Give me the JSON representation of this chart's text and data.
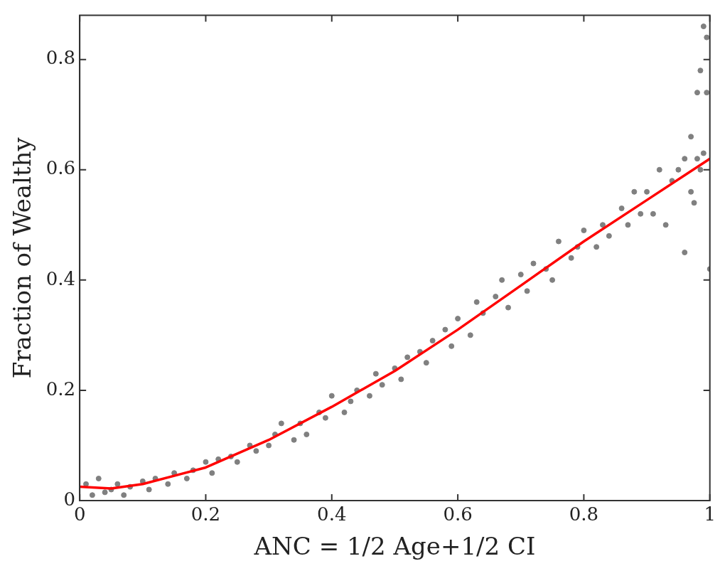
{
  "chart_data": {
    "type": "scatter",
    "xlabel": "ANC = 1/2 Age+1/2 CI",
    "ylabel": "Fraction of Wealthy",
    "xlim": [
      0,
      1
    ],
    "ylim": [
      0,
      0.88
    ],
    "xticks": [
      0,
      0.2,
      0.4,
      0.6,
      0.8,
      1
    ],
    "yticks": [
      0,
      0.2,
      0.4,
      0.6,
      0.8
    ],
    "grid": false,
    "legend": false,
    "marker": "circle",
    "series": [
      {
        "type": "scatter",
        "color": "#808080",
        "x": [
          0.01,
          0.02,
          0.03,
          0.04,
          0.05,
          0.06,
          0.07,
          0.08,
          0.1,
          0.11,
          0.12,
          0.14,
          0.15,
          0.17,
          0.18,
          0.2,
          0.21,
          0.22,
          0.24,
          0.25,
          0.27,
          0.28,
          0.3,
          0.31,
          0.32,
          0.34,
          0.35,
          0.36,
          0.38,
          0.39,
          0.4,
          0.42,
          0.43,
          0.44,
          0.46,
          0.47,
          0.48,
          0.5,
          0.51,
          0.52,
          0.54,
          0.55,
          0.56,
          0.58,
          0.59,
          0.6,
          0.62,
          0.63,
          0.64,
          0.66,
          0.67,
          0.68,
          0.7,
          0.71,
          0.72,
          0.74,
          0.75,
          0.76,
          0.78,
          0.79,
          0.8,
          0.82,
          0.83,
          0.84,
          0.86,
          0.87,
          0.88,
          0.89,
          0.9,
          0.91,
          0.92,
          0.93,
          0.94,
          0.95,
          0.96,
          0.96,
          0.97,
          0.97,
          0.975,
          0.98,
          0.98,
          0.985,
          0.985,
          0.99,
          0.99,
          0.995,
          0.995,
          1.0
        ],
        "values": [
          0.03,
          0.01,
          0.04,
          0.015,
          0.02,
          0.03,
          0.01,
          0.025,
          0.035,
          0.02,
          0.04,
          0.03,
          0.05,
          0.04,
          0.055,
          0.07,
          0.05,
          0.075,
          0.08,
          0.07,
          0.1,
          0.09,
          0.1,
          0.12,
          0.14,
          0.11,
          0.14,
          0.12,
          0.16,
          0.15,
          0.19,
          0.16,
          0.18,
          0.2,
          0.19,
          0.23,
          0.21,
          0.24,
          0.22,
          0.26,
          0.27,
          0.25,
          0.29,
          0.31,
          0.28,
          0.33,
          0.3,
          0.36,
          0.34,
          0.37,
          0.4,
          0.35,
          0.41,
          0.38,
          0.43,
          0.42,
          0.4,
          0.47,
          0.44,
          0.46,
          0.49,
          0.46,
          0.5,
          0.48,
          0.53,
          0.5,
          0.56,
          0.52,
          0.56,
          0.52,
          0.6,
          0.5,
          0.58,
          0.6,
          0.45,
          0.62,
          0.56,
          0.66,
          0.54,
          0.62,
          0.74,
          0.6,
          0.78,
          0.63,
          0.86,
          0.74,
          0.84,
          0.42
        ]
      },
      {
        "type": "line",
        "color": "#ff0000",
        "marker": "none",
        "x": [
          0,
          0.05,
          0.1,
          0.2,
          0.3,
          0.4,
          0.5,
          0.6,
          0.7,
          0.8,
          0.9,
          1.0
        ],
        "values": [
          0.025,
          0.022,
          0.03,
          0.06,
          0.11,
          0.17,
          0.235,
          0.31,
          0.39,
          0.47,
          0.545,
          0.62
        ]
      }
    ]
  }
}
